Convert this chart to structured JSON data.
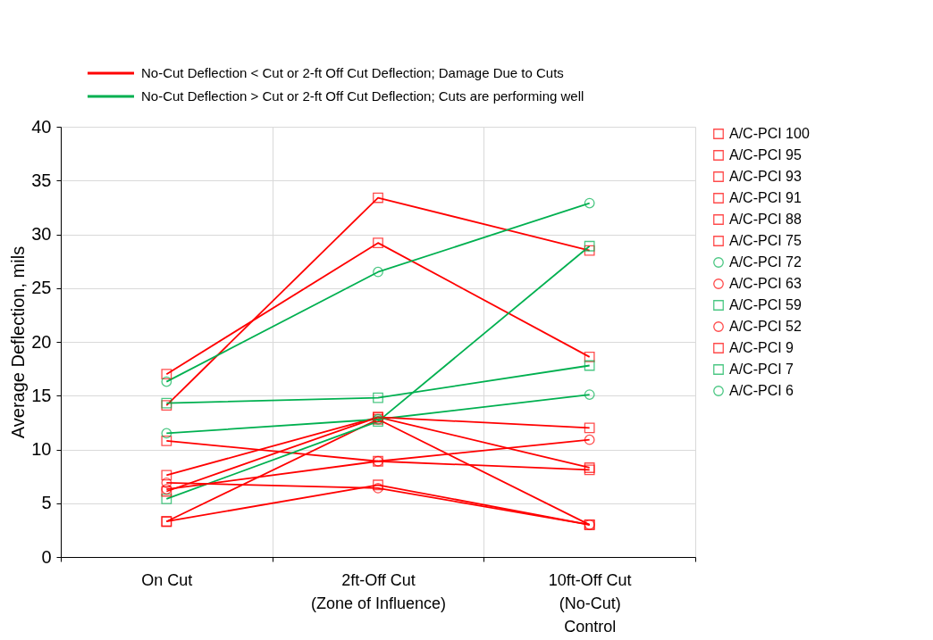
{
  "chart_data": {
    "type": "line",
    "ylabel": "Average Deflection, mils",
    "categories": [
      "On Cut",
      "2ft-Off Cut\n(Zone of Influence)",
      "10ft-Off Cut\n(No-Cut)\nControl"
    ],
    "ylim": [
      0,
      40
    ],
    "yticks": [
      0,
      5,
      10,
      15,
      20,
      25,
      30,
      35,
      40
    ],
    "grid": true,
    "legend": "right",
    "line_style": "solid",
    "annotations": [
      "No-Cut Deflection < Cut or 2-ft Off Cut Deflection; Damage Due to Cuts",
      "No-Cut Deflection > Cut or 2-ft Off Cut Deflection; Cuts are performing well"
    ],
    "series": [
      {
        "name": "A/C-PCI 100",
        "color": "#ff0000",
        "marker": "square",
        "values": [
          3.3,
          12.8,
          3.0
        ]
      },
      {
        "name": "A/C-PCI 95",
        "color": "#ff0000",
        "marker": "square",
        "values": [
          17.0,
          29.2,
          18.6
        ]
      },
      {
        "name": "A/C-PCI 93",
        "color": "#ff0000",
        "marker": "square",
        "values": [
          14.1,
          33.4,
          28.5
        ]
      },
      {
        "name": "A/C-PCI 91",
        "color": "#ff0000",
        "marker": "square",
        "values": [
          3.3,
          6.7,
          3.0
        ]
      },
      {
        "name": "A/C-PCI 88",
        "color": "#ff0000",
        "marker": "square",
        "values": [
          7.6,
          13.0,
          8.3
        ]
      },
      {
        "name": "A/C-PCI 75",
        "color": "#ff0000",
        "marker": "square",
        "values": [
          10.8,
          8.9,
          8.1
        ]
      },
      {
        "name": "A/C-PCI 72",
        "color": "#00b050",
        "marker": "circle",
        "values": [
          11.5,
          12.8,
          15.1
        ]
      },
      {
        "name": "A/C-PCI 63",
        "color": "#ff0000",
        "marker": "circle",
        "values": [
          6.9,
          6.4,
          3.0
        ]
      },
      {
        "name": "A/C-PCI 59",
        "color": "#00b050",
        "marker": "square",
        "values": [
          5.4,
          12.6,
          28.9
        ]
      },
      {
        "name": "A/C-PCI 52",
        "color": "#ff0000",
        "marker": "circle",
        "values": [
          6.3,
          8.9,
          10.9
        ]
      },
      {
        "name": "A/C-PCI 9",
        "color": "#ff0000",
        "marker": "square",
        "values": [
          6.1,
          13.0,
          12.0
        ]
      },
      {
        "name": "A/C-PCI 7",
        "color": "#00b050",
        "marker": "square",
        "values": [
          14.3,
          14.8,
          17.8
        ]
      },
      {
        "name": "A/C-PCI 6",
        "color": "#00b050",
        "marker": "circle",
        "values": [
          16.3,
          26.5,
          32.9
        ]
      }
    ]
  }
}
